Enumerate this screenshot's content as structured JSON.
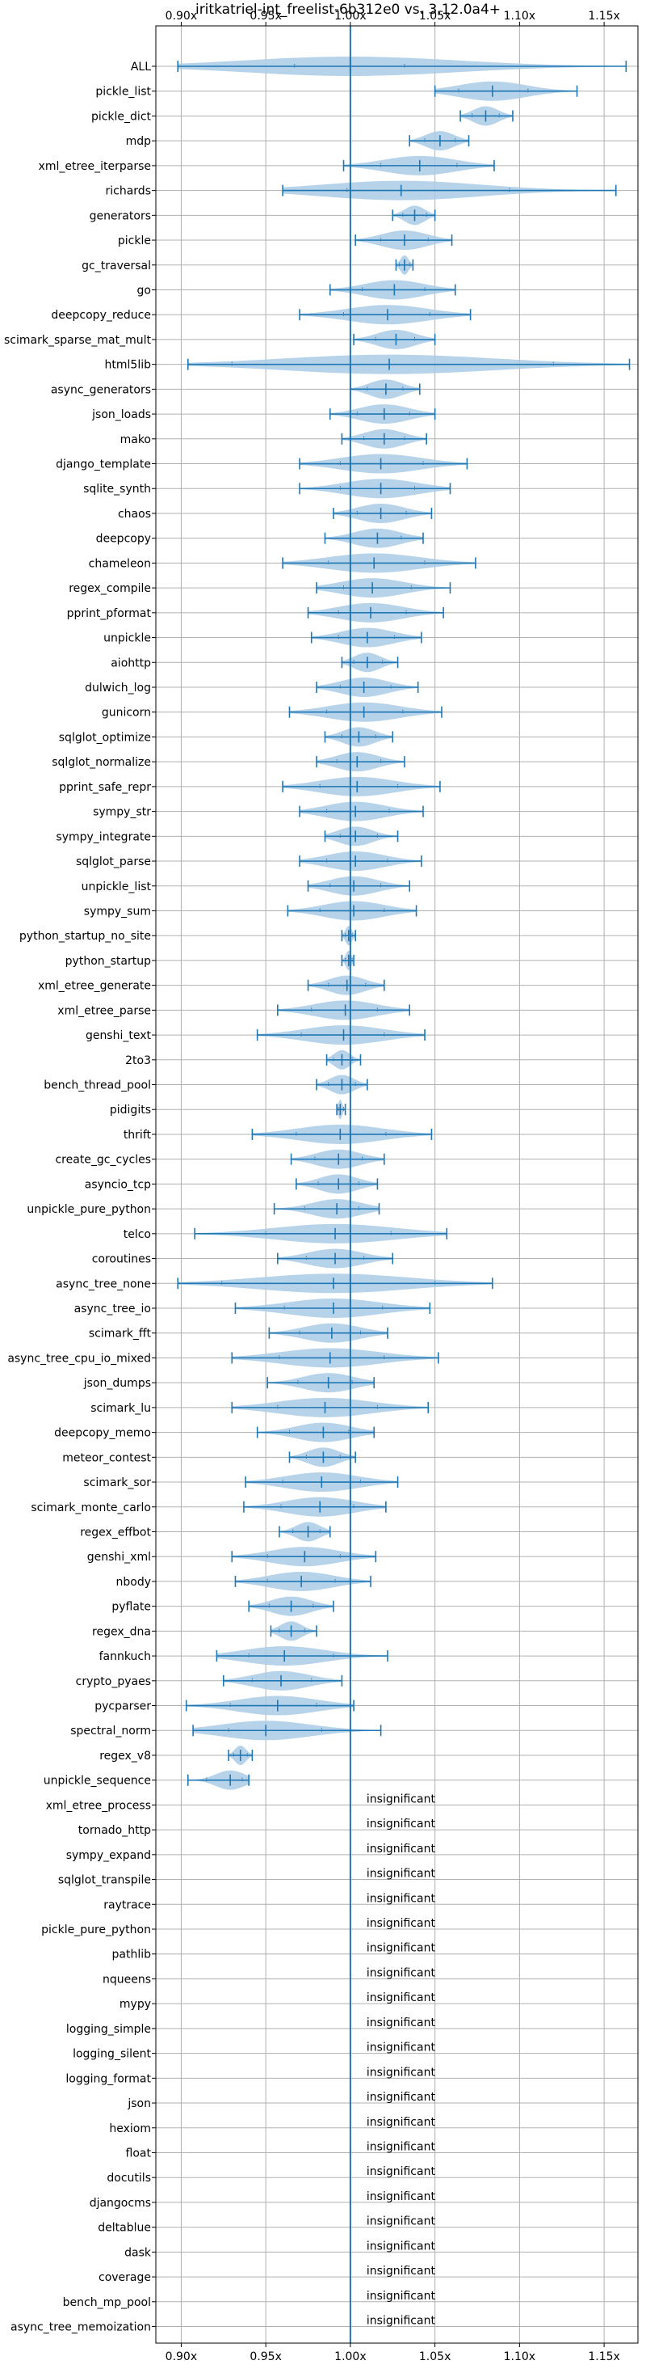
{
  "chart_data": {
    "type": "violin",
    "title": "iritkatriel-int_freelist-6b312e0 vs. 3.12.0a4+",
    "xlim": [
      0.885,
      1.17
    ],
    "xticks": [
      0.9,
      0.95,
      1.0,
      1.05,
      1.1,
      1.15
    ],
    "xtick_labels": [
      "0.90x",
      "0.95x",
      "1.00x",
      "1.05x",
      "1.10x",
      "1.15x"
    ],
    "reference_line": 1.0,
    "grid": true,
    "color": "#1f77b4",
    "fill_color": "#aacbe6",
    "insignificant_label": "insignificant",
    "benchmarks": [
      {
        "name": "ALL",
        "min": 0.898,
        "mean": 1.0,
        "max": 1.163,
        "q1": 0.967,
        "q3": 1.032
      },
      {
        "name": "pickle_list",
        "min": 1.05,
        "mean": 1.084,
        "max": 1.134,
        "q1": 1.064,
        "q3": 1.105
      },
      {
        "name": "pickle_dict",
        "min": 1.065,
        "mean": 1.08,
        "max": 1.096,
        "q1": 1.072,
        "q3": 1.088
      },
      {
        "name": "mdp",
        "min": 1.035,
        "mean": 1.053,
        "max": 1.07,
        "q1": 1.044,
        "q3": 1.062
      },
      {
        "name": "xml_etree_iterparse",
        "min": 0.996,
        "mean": 1.041,
        "max": 1.085,
        "q1": 1.018,
        "q3": 1.063
      },
      {
        "name": "richards",
        "min": 0.96,
        "mean": 1.03,
        "max": 1.157,
        "q1": 0.998,
        "q3": 1.094
      },
      {
        "name": "generators",
        "min": 1.025,
        "mean": 1.038,
        "max": 1.05,
        "q1": 1.031,
        "q3": 1.045
      },
      {
        "name": "pickle",
        "min": 1.003,
        "mean": 1.032,
        "max": 1.06,
        "q1": 1.018,
        "q3": 1.046
      },
      {
        "name": "gc_traversal",
        "min": 1.027,
        "mean": 1.032,
        "max": 1.037,
        "q1": 1.029,
        "q3": 1.035
      },
      {
        "name": "go",
        "min": 0.988,
        "mean": 1.026,
        "max": 1.062,
        "q1": 1.007,
        "q3": 1.044
      },
      {
        "name": "deepcopy_reduce",
        "min": 0.97,
        "mean": 1.022,
        "max": 1.071,
        "q1": 0.996,
        "q3": 1.047
      },
      {
        "name": "scimark_sparse_mat_mult",
        "min": 1.002,
        "mean": 1.027,
        "max": 1.05,
        "q1": 1.015,
        "q3": 1.038
      },
      {
        "name": "html5lib",
        "min": 0.904,
        "mean": 1.023,
        "max": 1.165,
        "q1": 0.93,
        "q3": 1.12
      },
      {
        "name": "async_generators",
        "min": 1.0,
        "mean": 1.021,
        "max": 1.041,
        "q1": 1.01,
        "q3": 1.031
      },
      {
        "name": "json_loads",
        "min": 0.988,
        "mean": 1.02,
        "max": 1.05,
        "q1": 1.004,
        "q3": 1.035
      },
      {
        "name": "mako",
        "min": 0.995,
        "mean": 1.02,
        "max": 1.045,
        "q1": 1.008,
        "q3": 1.032
      },
      {
        "name": "django_template",
        "min": 0.97,
        "mean": 1.018,
        "max": 1.069,
        "q1": 0.994,
        "q3": 1.043
      },
      {
        "name": "sqlite_synth",
        "min": 0.97,
        "mean": 1.018,
        "max": 1.059,
        "q1": 0.994,
        "q3": 1.038
      },
      {
        "name": "chaos",
        "min": 0.99,
        "mean": 1.018,
        "max": 1.048,
        "q1": 1.004,
        "q3": 1.033
      },
      {
        "name": "deepcopy",
        "min": 0.985,
        "mean": 1.016,
        "max": 1.043,
        "q1": 1.0,
        "q3": 1.03
      },
      {
        "name": "chameleon",
        "min": 0.96,
        "mean": 1.014,
        "max": 1.074,
        "q1": 0.987,
        "q3": 1.044
      },
      {
        "name": "regex_compile",
        "min": 0.98,
        "mean": 1.013,
        "max": 1.059,
        "q1": 0.996,
        "q3": 1.036
      },
      {
        "name": "pprint_pformat",
        "min": 0.975,
        "mean": 1.012,
        "max": 1.055,
        "q1": 0.993,
        "q3": 1.033
      },
      {
        "name": "unpickle",
        "min": 0.977,
        "mean": 1.01,
        "max": 1.042,
        "q1": 0.993,
        "q3": 1.026
      },
      {
        "name": "aiohttp",
        "min": 0.995,
        "mean": 1.01,
        "max": 1.028,
        "q1": 1.002,
        "q3": 1.019
      },
      {
        "name": "dulwich_log",
        "min": 0.98,
        "mean": 1.008,
        "max": 1.04,
        "q1": 0.994,
        "q3": 1.024
      },
      {
        "name": "gunicorn",
        "min": 0.964,
        "mean": 1.008,
        "max": 1.054,
        "q1": 0.986,
        "q3": 1.031
      },
      {
        "name": "sqlglot_optimize",
        "min": 0.985,
        "mean": 1.005,
        "max": 1.025,
        "q1": 0.995,
        "q3": 1.015
      },
      {
        "name": "sqlglot_normalize",
        "min": 0.98,
        "mean": 1.004,
        "max": 1.032,
        "q1": 0.992,
        "q3": 1.018
      },
      {
        "name": "pprint_safe_repr",
        "min": 0.96,
        "mean": 1.004,
        "max": 1.053,
        "q1": 0.982,
        "q3": 1.028
      },
      {
        "name": "sympy_str",
        "min": 0.97,
        "mean": 1.003,
        "max": 1.043,
        "q1": 0.986,
        "q3": 1.023
      },
      {
        "name": "sympy_integrate",
        "min": 0.985,
        "mean": 1.003,
        "max": 1.028,
        "q1": 0.994,
        "q3": 1.016
      },
      {
        "name": "sqlglot_parse",
        "min": 0.97,
        "mean": 1.003,
        "max": 1.042,
        "q1": 0.986,
        "q3": 1.022
      },
      {
        "name": "unpickle_list",
        "min": 0.975,
        "mean": 1.002,
        "max": 1.035,
        "q1": 0.988,
        "q3": 1.018
      },
      {
        "name": "sympy_sum",
        "min": 0.963,
        "mean": 1.002,
        "max": 1.039,
        "q1": 0.982,
        "q3": 1.02
      },
      {
        "name": "python_startup_no_site",
        "min": 0.995,
        "mean": 0.999,
        "max": 1.003,
        "q1": 0.997,
        "q3": 1.001
      },
      {
        "name": "python_startup",
        "min": 0.995,
        "mean": 0.999,
        "max": 1.002,
        "q1": 0.997,
        "q3": 1.001
      },
      {
        "name": "xml_etree_generate",
        "min": 0.975,
        "mean": 0.998,
        "max": 1.02,
        "q1": 0.987,
        "q3": 1.009
      },
      {
        "name": "xml_etree_parse",
        "min": 0.957,
        "mean": 0.997,
        "max": 1.035,
        "q1": 0.977,
        "q3": 1.016
      },
      {
        "name": "genshi_text",
        "min": 0.945,
        "mean": 0.996,
        "max": 1.044,
        "q1": 0.971,
        "q3": 1.02
      },
      {
        "name": "2to3",
        "min": 0.986,
        "mean": 0.995,
        "max": 1.006,
        "q1": 0.99,
        "q3": 1.001
      },
      {
        "name": "bench_thread_pool",
        "min": 0.98,
        "mean": 0.995,
        "max": 1.01,
        "q1": 0.987,
        "q3": 1.003
      },
      {
        "name": "pidigits",
        "min": 0.992,
        "mean": 0.994,
        "max": 0.997,
        "q1": 0.993,
        "q3": 0.996
      },
      {
        "name": "thrift",
        "min": 0.942,
        "mean": 0.994,
        "max": 1.048,
        "q1": 0.968,
        "q3": 1.021
      },
      {
        "name": "create_gc_cycles",
        "min": 0.965,
        "mean": 0.993,
        "max": 1.02,
        "q1": 0.979,
        "q3": 1.007
      },
      {
        "name": "asyncio_tcp",
        "min": 0.968,
        "mean": 0.993,
        "max": 1.016,
        "q1": 0.981,
        "q3": 1.005
      },
      {
        "name": "unpickle_pure_python",
        "min": 0.955,
        "mean": 0.992,
        "max": 1.017,
        "q1": 0.973,
        "q3": 1.005
      },
      {
        "name": "telco",
        "min": 0.908,
        "mean": 0.991,
        "max": 1.057,
        "q1": 0.95,
        "q3": 1.024
      },
      {
        "name": "coroutines",
        "min": 0.957,
        "mean": 0.991,
        "max": 1.025,
        "q1": 0.974,
        "q3": 1.008
      },
      {
        "name": "async_tree_none",
        "min": 0.898,
        "mean": 0.99,
        "max": 1.084,
        "q1": 0.924,
        "q3": 1.05
      },
      {
        "name": "async_tree_io",
        "min": 0.932,
        "mean": 0.99,
        "max": 1.047,
        "q1": 0.961,
        "q3": 1.019
      },
      {
        "name": "scimark_fft",
        "min": 0.952,
        "mean": 0.989,
        "max": 1.022,
        "q1": 0.97,
        "q3": 1.006
      },
      {
        "name": "async_tree_cpu_io_mixed",
        "min": 0.93,
        "mean": 0.988,
        "max": 1.052,
        "q1": 0.958,
        "q3": 1.02
      },
      {
        "name": "json_dumps",
        "min": 0.951,
        "mean": 0.987,
        "max": 1.014,
        "q1": 0.969,
        "q3": 1.001
      },
      {
        "name": "scimark_lu",
        "min": 0.93,
        "mean": 0.985,
        "max": 1.046,
        "q1": 0.957,
        "q3": 1.016
      },
      {
        "name": "deepcopy_memo",
        "min": 0.945,
        "mean": 0.984,
        "max": 1.014,
        "q1": 0.964,
        "q3": 0.999
      },
      {
        "name": "meteor_contest",
        "min": 0.964,
        "mean": 0.984,
        "max": 1.003,
        "q1": 0.974,
        "q3": 0.994
      },
      {
        "name": "scimark_sor",
        "min": 0.938,
        "mean": 0.983,
        "max": 1.028,
        "q1": 0.96,
        "q3": 1.006
      },
      {
        "name": "scimark_monte_carlo",
        "min": 0.937,
        "mean": 0.982,
        "max": 1.021,
        "q1": 0.959,
        "q3": 1.002
      },
      {
        "name": "regex_effbot",
        "min": 0.958,
        "mean": 0.975,
        "max": 0.988,
        "q1": 0.966,
        "q3": 0.982
      },
      {
        "name": "genshi_xml",
        "min": 0.93,
        "mean": 0.973,
        "max": 1.015,
        "q1": 0.951,
        "q3": 0.994
      },
      {
        "name": "nbody",
        "min": 0.932,
        "mean": 0.971,
        "max": 1.012,
        "q1": 0.951,
        "q3": 0.991
      },
      {
        "name": "pyflate",
        "min": 0.94,
        "mean": 0.965,
        "max": 0.99,
        "q1": 0.952,
        "q3": 0.978
      },
      {
        "name": "regex_dna",
        "min": 0.953,
        "mean": 0.965,
        "max": 0.98,
        "q1": 0.958,
        "q3": 0.973
      },
      {
        "name": "fannkuch",
        "min": 0.921,
        "mean": 0.961,
        "max": 1.022,
        "q1": 0.94,
        "q3": 0.99
      },
      {
        "name": "crypto_pyaes",
        "min": 0.925,
        "mean": 0.959,
        "max": 0.995,
        "q1": 0.942,
        "q3": 0.977
      },
      {
        "name": "pycparser",
        "min": 0.903,
        "mean": 0.957,
        "max": 1.002,
        "q1": 0.929,
        "q3": 0.98
      },
      {
        "name": "spectral_norm",
        "min": 0.907,
        "mean": 0.95,
        "max": 1.018,
        "q1": 0.928,
        "q3": 0.983
      },
      {
        "name": "regex_v8",
        "min": 0.928,
        "mean": 0.935,
        "max": 0.942,
        "q1": 0.931,
        "q3": 0.939
      },
      {
        "name": "unpickle_sequence",
        "min": 0.904,
        "mean": 0.929,
        "max": 0.94,
        "q1": 0.915,
        "q3": 0.936
      },
      {
        "name": "xml_etree_process",
        "insignificant": true
      },
      {
        "name": "tornado_http",
        "insignificant": true
      },
      {
        "name": "sympy_expand",
        "insignificant": true
      },
      {
        "name": "sqlglot_transpile",
        "insignificant": true
      },
      {
        "name": "raytrace",
        "insignificant": true
      },
      {
        "name": "pickle_pure_python",
        "insignificant": true
      },
      {
        "name": "pathlib",
        "insignificant": true
      },
      {
        "name": "nqueens",
        "insignificant": true
      },
      {
        "name": "mypy",
        "insignificant": true
      },
      {
        "name": "logging_simple",
        "insignificant": true
      },
      {
        "name": "logging_silent",
        "insignificant": true
      },
      {
        "name": "logging_format",
        "insignificant": true
      },
      {
        "name": "json",
        "insignificant": true
      },
      {
        "name": "hexiom",
        "insignificant": true
      },
      {
        "name": "float",
        "insignificant": true
      },
      {
        "name": "docutils",
        "insignificant": true
      },
      {
        "name": "djangocms",
        "insignificant": true
      },
      {
        "name": "deltablue",
        "insignificant": true
      },
      {
        "name": "dask",
        "insignificant": true
      },
      {
        "name": "coverage",
        "insignificant": true
      },
      {
        "name": "bench_mp_pool",
        "insignificant": true
      },
      {
        "name": "async_tree_memoization",
        "insignificant": true
      }
    ]
  }
}
